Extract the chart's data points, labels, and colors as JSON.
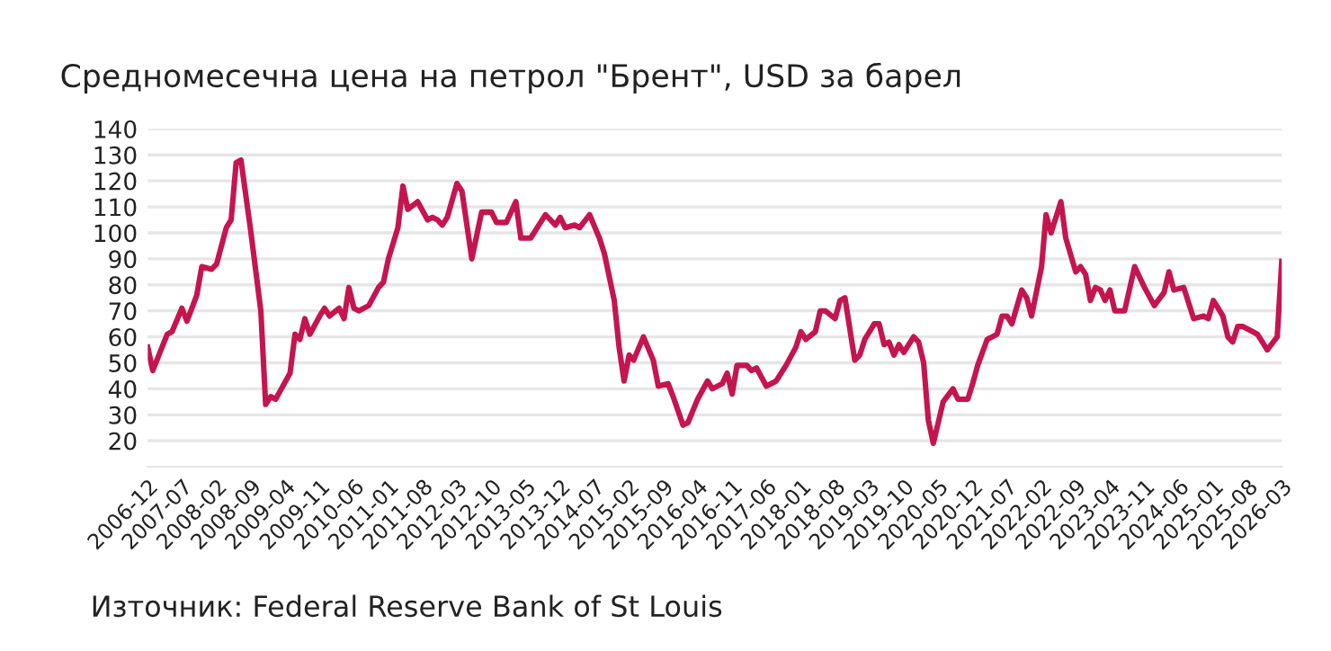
{
  "chart_data": {
    "type": "line",
    "title": "Средномесечна цена на петрол \"Брент\", USD за барел",
    "annotations": [
      "Източник: Federal Reserve Bank of St Louis"
    ],
    "x": [
      "2006-12",
      "2007-01",
      "2007-04",
      "2007-05",
      "2007-07",
      "2007-08",
      "2007-10",
      "2007-11",
      "2008-01",
      "2008-02",
      "2008-04",
      "2008-05",
      "2008-06",
      "2008-07",
      "2008-09",
      "2008-11",
      "2008-12",
      "2009-01",
      "2009-02",
      "2009-05",
      "2009-06",
      "2009-07",
      "2009-08",
      "2009-09",
      "2009-11",
      "2009-12",
      "2010-01",
      "2010-03",
      "2010-04",
      "2010-05",
      "2010-06",
      "2010-07",
      "2010-09",
      "2010-11",
      "2010-12",
      "2011-01",
      "2011-03",
      "2011-04",
      "2011-05",
      "2011-07",
      "2011-09",
      "2011-10",
      "2011-11",
      "2011-12",
      "2012-01",
      "2012-03",
      "2012-04",
      "2012-06",
      "2012-08",
      "2012-10",
      "2012-11",
      "2013-01",
      "2013-03",
      "2013-04",
      "2013-06",
      "2013-08",
      "2013-09",
      "2013-11",
      "2013-12",
      "2014-01",
      "2014-03",
      "2014-04",
      "2014-06",
      "2014-08",
      "2014-09",
      "2014-11",
      "2014-12",
      "2015-01",
      "2015-02",
      "2015-03",
      "2015-05",
      "2015-07",
      "2015-08",
      "2015-10",
      "2015-11",
      "2016-01",
      "2016-02",
      "2016-04",
      "2016-06",
      "2016-07",
      "2016-09",
      "2016-10",
      "2016-11",
      "2016-12",
      "2017-02",
      "2017-03",
      "2017-04",
      "2017-06",
      "2017-08",
      "2017-10",
      "2017-12",
      "2018-01",
      "2018-02",
      "2018-04",
      "2018-05",
      "2018-06",
      "2018-08",
      "2018-09",
      "2018-10",
      "2018-12",
      "2019-01",
      "2019-02",
      "2019-04",
      "2019-05",
      "2019-06",
      "2019-07",
      "2019-08",
      "2019-09",
      "2019-10",
      "2019-12",
      "2020-01",
      "2020-02",
      "2020-03",
      "2020-04",
      "2020-06",
      "2020-08",
      "2020-09",
      "2020-11",
      "2020-12",
      "2021-01",
      "2021-03",
      "2021-04",
      "2021-05",
      "2021-06",
      "2021-07",
      "2021-08",
      "2021-10",
      "2021-11",
      "2021-12",
      "2022-02",
      "2022-03",
      "2022-04",
      "2022-06",
      "2022-07",
      "2022-09",
      "2022-10",
      "2022-11",
      "2022-12",
      "2023-01",
      "2023-02",
      "2023-03",
      "2023-04",
      "2023-05",
      "2023-07",
      "2023-09",
      "2023-11",
      "2024-01",
      "2024-03",
      "2024-04",
      "2024-05",
      "2024-07",
      "2024-09",
      "2024-11",
      "2024-12",
      "2025-01",
      "2025-03",
      "2025-04",
      "2025-05",
      "2025-06",
      "2025-07",
      "2025-09",
      "2025-10",
      "2025-11",
      "2025-12",
      "2026-02",
      "2026-03"
    ],
    "series": [
      {
        "color": "#c5154f",
        "values": [
          56,
          47,
          61,
          62,
          71,
          66,
          76,
          87,
          86,
          88,
          102,
          105,
          127,
          128,
          100,
          70,
          34,
          37,
          36,
          46,
          61,
          59,
          67,
          61,
          68,
          71,
          68,
          71,
          67,
          79,
          71,
          70,
          72,
          79,
          81,
          90,
          102,
          118,
          109,
          112,
          105,
          106,
          105,
          103,
          106,
          119,
          116,
          90,
          108,
          108,
          104,
          104,
          112,
          98,
          98,
          104,
          107,
          103,
          106,
          102,
          103,
          102,
          107,
          98,
          92,
          74,
          56,
          43,
          53,
          51,
          60,
          51,
          41,
          42,
          37,
          26,
          27,
          36,
          43,
          40,
          42,
          46,
          38,
          49,
          49,
          47,
          48,
          41,
          43,
          49,
          56,
          62,
          59,
          62,
          70,
          70,
          67,
          74,
          75,
          51,
          53,
          59,
          65,
          65,
          57,
          58,
          53,
          57,
          54,
          60,
          58,
          50,
          28,
          19,
          35,
          40,
          36,
          36,
          42,
          49,
          59,
          60,
          61,
          68,
          68,
          65,
          78,
          75,
          68,
          87,
          107,
          100,
          112,
          98,
          85,
          87,
          84,
          74,
          79,
          78,
          74,
          78,
          70,
          70,
          87,
          79,
          72,
          77,
          85,
          78,
          79,
          67,
          68,
          67,
          74,
          68,
          60,
          58,
          64,
          64,
          62,
          61,
          58,
          55,
          60,
          89
        ]
      }
    ],
    "xlim": [
      "2006-12",
      "2026-03"
    ],
    "xticks": [
      "2006-12",
      "2007-07",
      "2008-02",
      "2008-09",
      "2009-04",
      "2009-11",
      "2010-06",
      "2011-01",
      "2011-08",
      "2012-03",
      "2012-10",
      "2013-05",
      "2013-12",
      "2014-07",
      "2015-02",
      "2015-09",
      "2016-04",
      "2016-11",
      "2017-06",
      "2018-01",
      "2018-08",
      "2019-03",
      "2019-10",
      "2020-05",
      "2020-12",
      "2021-07",
      "2022-02",
      "2022-09",
      "2023-04",
      "2023-11",
      "2024-06",
      "2025-01",
      "2025-08",
      "2026-03"
    ],
    "ylim": [
      10,
      140
    ],
    "yticks": [
      20,
      30,
      40,
      50,
      60,
      70,
      80,
      90,
      100,
      110,
      120,
      130,
      140
    ],
    "grid": "y",
    "marker": "none",
    "line_style": "solid"
  }
}
